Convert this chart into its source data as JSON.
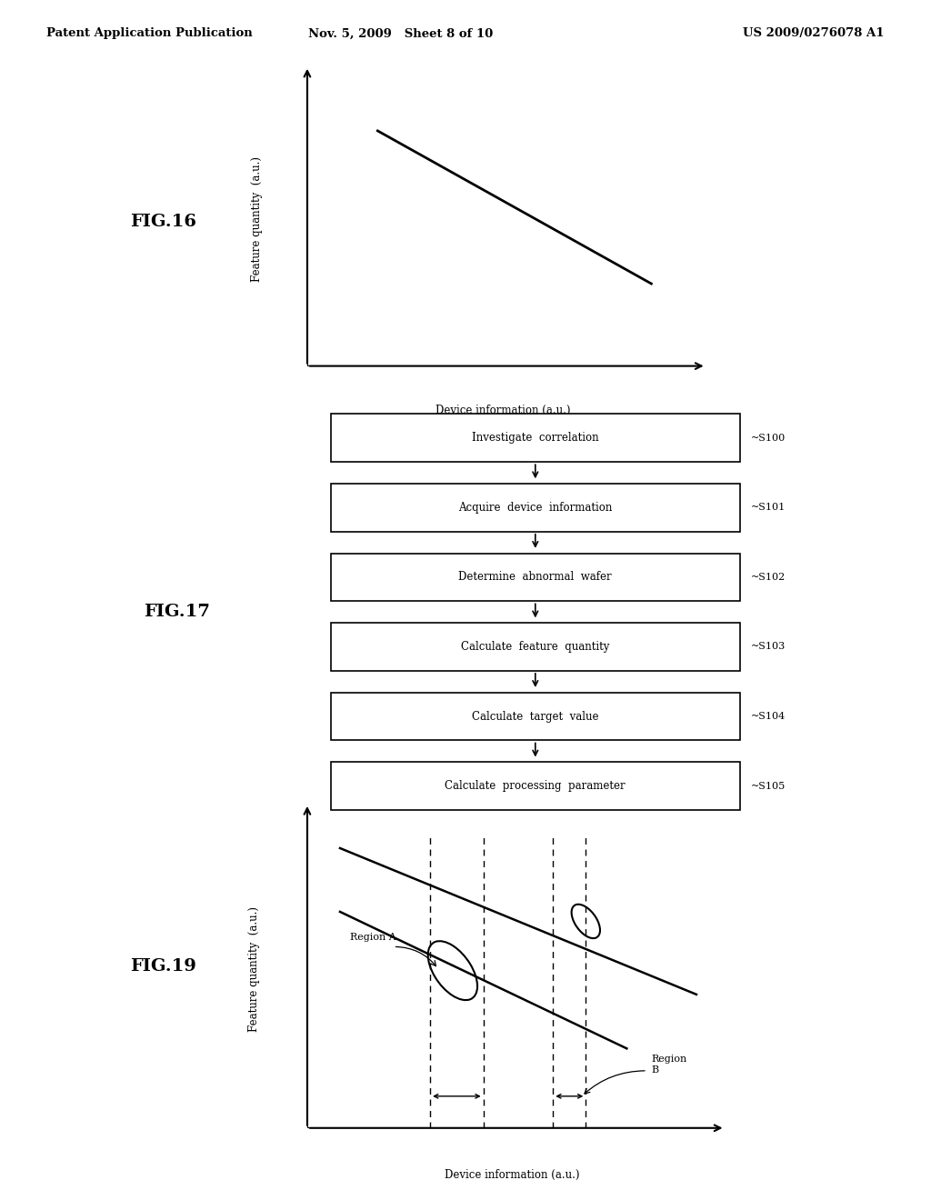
{
  "bg_color": "#ffffff",
  "text_color": "#000000",
  "header_left": "Patent Application Publication",
  "header_mid": "Nov. 5, 2009   Sheet 8 of 10",
  "header_right": "US 2009/0276078 A1",
  "fig16_label": "FIG.16",
  "fig16_ylabel": "Feature quantity  (a.u.)",
  "fig16_xlabel": "Device information (a.u.)",
  "fig17_label": "FIG.17",
  "fig17_steps": [
    {
      "text": "Investigate  correlation",
      "step": "S100"
    },
    {
      "text": "Acquire  device  information",
      "step": "S101"
    },
    {
      "text": "Determine  abnormal  wafer",
      "step": "S102"
    },
    {
      "text": "Calculate  feature  quantity",
      "step": "S103"
    },
    {
      "text": "Calculate  target  value",
      "step": "S104"
    },
    {
      "text": "Calculate  processing  parameter",
      "step": "S105"
    }
  ],
  "fig19_label": "FIG.19",
  "fig19_ylabel": "Feature quantity  (a.u.)",
  "fig19_xlabel": "Device information (a.u.)"
}
